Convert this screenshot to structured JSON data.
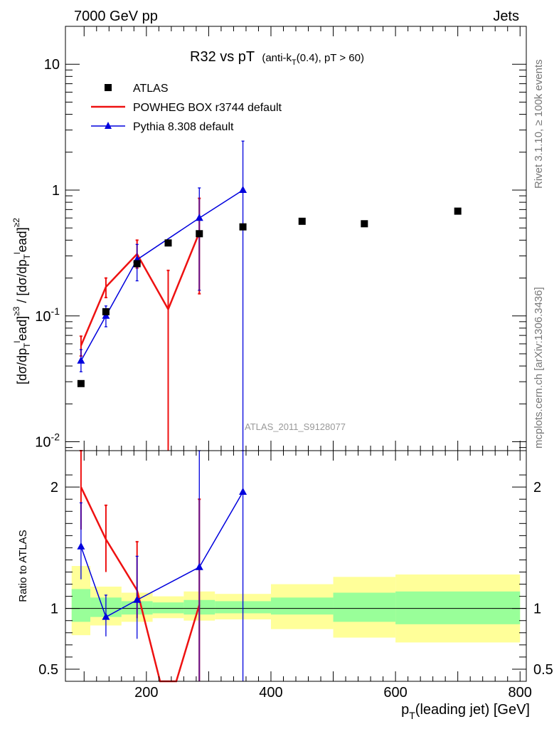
{
  "header": {
    "energy": "7000 GeV pp",
    "category": "Jets"
  },
  "side_labels": {
    "rivet": "Rivet 3.1.10, ≥ 100k events",
    "mcplots": "mcplots.cern.ch [arXiv:1306.3436]"
  },
  "colors": {
    "data": "#000000",
    "powheg": "#ee1111",
    "pythia": "#0000dd",
    "band_inner": "#99ff99",
    "band_outer": "#ffff99",
    "overlap": "#66118a"
  },
  "chart_data": [
    {
      "type": "scatter",
      "panel": "main",
      "title": "R32 vs pT",
      "title_sub": "(anti-k",
      "title_sub_T": "T",
      "title_sub_rest": "(0.4), pT > 60)",
      "ylabel": "[dσ/dp_T^lead]^≥3 / [dσ/dp_T^lead]^≥2",
      "yscale": "log",
      "ylim": [
        0.0085,
        20
      ],
      "xlim": [
        70,
        810
      ],
      "y_tick_labels": [
        "10",
        "1",
        "10^-1",
        "10^-2"
      ],
      "watermark": "ATLAS_2011_S9128077",
      "legend_position": "top-left",
      "series": [
        {
          "name": "ATLAS",
          "style": "markers",
          "x": [
            95,
            135,
            185,
            235,
            285,
            355,
            450,
            550,
            700
          ],
          "y": [
            0.029,
            0.108,
            0.26,
            0.38,
            0.45,
            0.51,
            0.565,
            0.54,
            0.68
          ]
        },
        {
          "name": "POWHEG BOX r3744 default",
          "style": "line",
          "x": [
            95,
            135,
            185,
            235,
            285
          ],
          "y": [
            0.058,
            0.17,
            0.31,
            0.113,
            0.46
          ],
          "err_low": [
            0.048,
            0.14,
            0.24,
            0.005,
            0.15
          ],
          "err_high": [
            0.069,
            0.2,
            0.4,
            0.23,
            0.86
          ]
        },
        {
          "name": "Pythia 8.308 default",
          "style": "line-triangles",
          "x": [
            95,
            135,
            185,
            285,
            355
          ],
          "y": [
            0.044,
            0.1,
            0.28,
            0.6,
            1.0
          ],
          "err_low": [
            0.036,
            0.082,
            0.19,
            0.16,
            0.005
          ],
          "err_high": [
            0.054,
            0.12,
            0.37,
            1.04,
            2.45
          ]
        }
      ]
    },
    {
      "type": "scatter",
      "panel": "ratio",
      "ylabel": "Ratio to ATLAS",
      "xlabel": "p_T(leading jet) [GeV]",
      "ylim": [
        0.4,
        2.3
      ],
      "xlim": [
        70,
        810
      ],
      "y_ticks": [
        0.5,
        1,
        2
      ],
      "y_tick_labels": [
        "0.5",
        "1",
        "2"
      ],
      "x_ticks": [
        200,
        400,
        600,
        800
      ],
      "x_tick_labels": [
        "200",
        "400",
        "600",
        "800"
      ],
      "bands": [
        {
          "xlo": 80,
          "xhi": 110,
          "inner": [
            0.89,
            1.16
          ],
          "outer": [
            0.78,
            1.35
          ]
        },
        {
          "xlo": 110,
          "xhi": 160,
          "inner": [
            0.93,
            1.09
          ],
          "outer": [
            0.86,
            1.18
          ]
        },
        {
          "xlo": 160,
          "xhi": 210,
          "inner": [
            0.95,
            1.06
          ],
          "outer": [
            0.89,
            1.13
          ]
        },
        {
          "xlo": 210,
          "xhi": 260,
          "inner": [
            0.96,
            1.05
          ],
          "outer": [
            0.92,
            1.1
          ]
        },
        {
          "xlo": 260,
          "xhi": 310,
          "inner": [
            0.95,
            1.07
          ],
          "outer": [
            0.9,
            1.14
          ]
        },
        {
          "xlo": 310,
          "xhi": 400,
          "inner": [
            0.96,
            1.06
          ],
          "outer": [
            0.91,
            1.12
          ]
        },
        {
          "xlo": 400,
          "xhi": 500,
          "inner": [
            0.95,
            1.09
          ],
          "outer": [
            0.83,
            1.2
          ]
        },
        {
          "xlo": 500,
          "xhi": 600,
          "inner": [
            0.89,
            1.13
          ],
          "outer": [
            0.76,
            1.26
          ]
        },
        {
          "xlo": 600,
          "xhi": 800,
          "inner": [
            0.87,
            1.14
          ],
          "outer": [
            0.72,
            1.28
          ]
        }
      ],
      "series": [
        {
          "name": "POWHEG BOX r3744 default",
          "style": "line",
          "x": [
            95,
            135,
            185,
            222,
            248,
            285
          ],
          "y": [
            2.0,
            1.57,
            1.15,
            0.34,
            0.34,
            1.03
          ],
          "errbars": [
            {
              "x": 95,
              "lo": 1.65,
              "hi": 2.4
            },
            {
              "x": 135,
              "lo": 1.3,
              "hi": 1.85
            },
            {
              "x": 185,
              "lo": 0.92,
              "hi": 1.55
            },
            {
              "x": 285,
              "lo": 0.34,
              "hi": 1.9
            }
          ]
        },
        {
          "name": "Pythia 8.308 default",
          "style": "line-triangles",
          "x": [
            95,
            135,
            185,
            285,
            355
          ],
          "y": [
            1.51,
            0.93,
            1.07,
            1.34,
            1.96
          ],
          "errbars": [
            {
              "x": 95,
              "lo": 1.24,
              "hi": 1.87
            },
            {
              "x": 135,
              "lo": 0.77,
              "hi": 1.11
            },
            {
              "x": 185,
              "lo": 0.75,
              "hi": 1.43
            },
            {
              "x": 285,
              "lo": 0.34,
              "hi": 2.35
            },
            {
              "x": 355,
              "lo": 0.34,
              "hi": 2.4
            }
          ]
        }
      ]
    }
  ]
}
